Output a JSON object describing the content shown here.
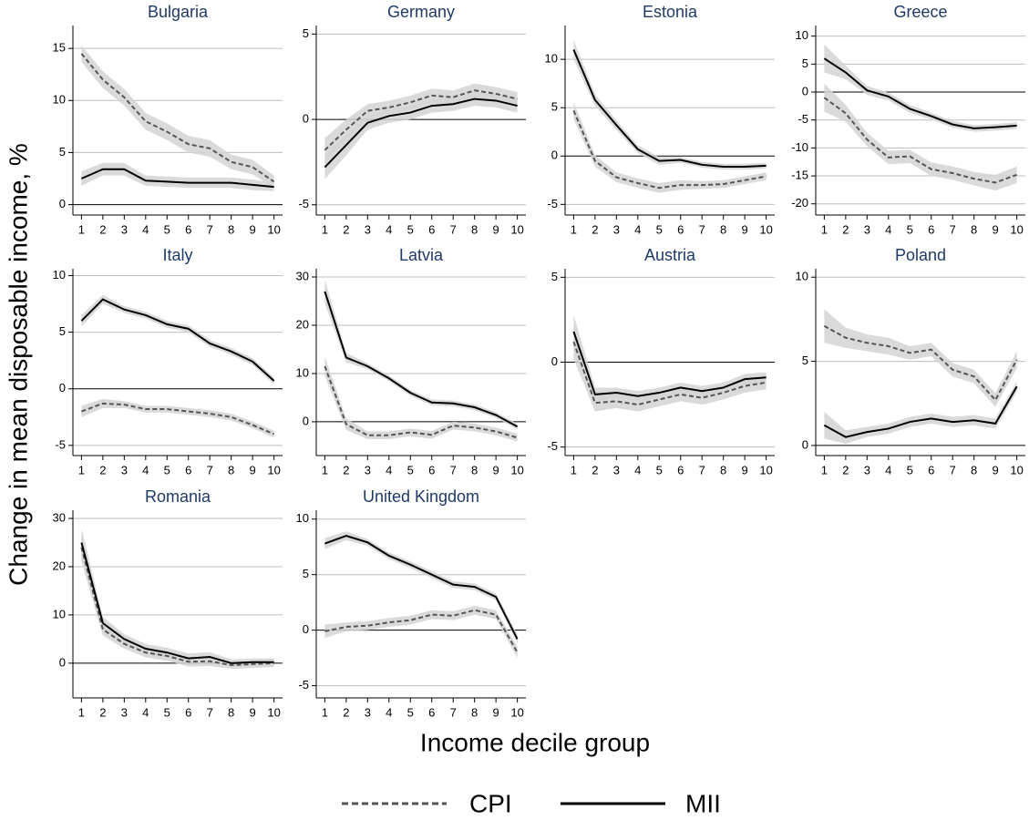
{
  "y_label": "Change in mean disposable income, %",
  "x_label": "Income decile group",
  "chart_data": [
    {
      "type": "line",
      "title": "Bulgaria",
      "x": [
        1,
        2,
        3,
        4,
        5,
        6,
        7,
        8,
        9,
        10
      ],
      "xlim": [
        0.6,
        10.4
      ],
      "xticks": [
        1,
        2,
        3,
        4,
        5,
        6,
        7,
        8,
        9,
        10
      ],
      "ylim": [
        -1,
        17.2
      ],
      "yticks": [
        0,
        5,
        10,
        15
      ],
      "series": [
        {
          "name": "CPI",
          "color": "#555555",
          "line_style": "dashed",
          "values": [
            14.5,
            12,
            10.3,
            8,
            7,
            5.8,
            5.4,
            4.1,
            3.6,
            2.2
          ],
          "ci": [
            0.8,
            0.8,
            0.8,
            0.8,
            0.8,
            0.8,
            0.8,
            0.7,
            0.7,
            0.6
          ]
        },
        {
          "name": "MII",
          "color": "#000000",
          "line_style": "solid",
          "values": [
            2.5,
            3.4,
            3.4,
            2.3,
            2.2,
            2.1,
            2.1,
            2.1,
            1.9,
            1.7
          ],
          "ci": [
            0.7,
            0.6,
            0.6,
            0.5,
            0.5,
            0.5,
            0.5,
            0.5,
            0.5,
            0.4
          ]
        }
      ]
    },
    {
      "type": "line",
      "title": "Germany",
      "x": [
        1,
        2,
        3,
        4,
        5,
        6,
        7,
        8,
        9,
        10
      ],
      "xlim": [
        0.6,
        10.4
      ],
      "xticks": [
        1,
        2,
        3,
        4,
        5,
        6,
        7,
        8,
        9,
        10
      ],
      "ylim": [
        -5.6,
        5.5
      ],
      "yticks": [
        -5,
        0,
        5
      ],
      "series": [
        {
          "name": "CPI",
          "color": "#555555",
          "line_style": "dashed",
          "values": [
            -1.8,
            -0.6,
            0.5,
            0.7,
            1.0,
            1.4,
            1.3,
            1.7,
            1.5,
            1.2
          ],
          "ci": [
            0.7,
            0.6,
            0.4,
            0.4,
            0.4,
            0.4,
            0.4,
            0.4,
            0.4,
            0.4
          ]
        },
        {
          "name": "MII",
          "color": "#000000",
          "line_style": "solid",
          "values": [
            -2.8,
            -1.5,
            -0.2,
            0.2,
            0.4,
            0.8,
            0.9,
            1.2,
            1.1,
            0.8
          ],
          "ci": [
            0.7,
            0.6,
            0.4,
            0.4,
            0.4,
            0.4,
            0.4,
            0.4,
            0.4,
            0.4
          ]
        }
      ]
    },
    {
      "type": "line",
      "title": "Estonia",
      "x": [
        1,
        2,
        3,
        4,
        5,
        6,
        7,
        8,
        9,
        10
      ],
      "xlim": [
        0.6,
        10.4
      ],
      "xticks": [
        1,
        2,
        3,
        4,
        5,
        6,
        7,
        8,
        9,
        10
      ],
      "ylim": [
        -6.1,
        13.5
      ],
      "yticks": [
        -5,
        0,
        5,
        10
      ],
      "series": [
        {
          "name": "CPI",
          "color": "#555555",
          "line_style": "dashed",
          "values": [
            4.7,
            -0.5,
            -2.2,
            -2.8,
            -3.3,
            -3,
            -3,
            -2.9,
            -2.5,
            -2.1
          ],
          "ci": [
            0.9,
            0.6,
            0.5,
            0.5,
            0.5,
            0.5,
            0.4,
            0.4,
            0.4,
            0.4
          ]
        },
        {
          "name": "MII",
          "color": "#000000",
          "line_style": "solid",
          "values": [
            11,
            5.8,
            3.2,
            0.7,
            -0.5,
            -0.4,
            -0.9,
            -1.1,
            -1.1,
            -1.0
          ],
          "ci": [
            1.0,
            0.6,
            0.5,
            0.4,
            0.4,
            0.3,
            0.3,
            0.3,
            0.3,
            0.3
          ]
        }
      ]
    },
    {
      "type": "line",
      "title": "Greece",
      "x": [
        1,
        2,
        3,
        4,
        5,
        6,
        7,
        8,
        9,
        10
      ],
      "xlim": [
        0.6,
        10.4
      ],
      "xticks": [
        1,
        2,
        3,
        4,
        5,
        6,
        7,
        8,
        9,
        10
      ],
      "ylim": [
        -22,
        11.9
      ],
      "yticks": [
        -20,
        -15,
        -10,
        -5,
        0,
        5,
        10
      ],
      "series": [
        {
          "name": "CPI",
          "color": "#555555",
          "line_style": "dashed",
          "values": [
            -1,
            -3.8,
            -8.5,
            -11.7,
            -11.5,
            -13.8,
            -14.5,
            -15.5,
            -16.2,
            -14.8
          ],
          "ci": [
            2.5,
            1.5,
            1.2,
            1.2,
            1.2,
            1.2,
            1.2,
            1.2,
            1.4,
            1.5
          ]
        },
        {
          "name": "MII",
          "color": "#000000",
          "line_style": "solid",
          "values": [
            6,
            3.5,
            0.3,
            -0.8,
            -3,
            -4.3,
            -5.8,
            -6.5,
            -6.3,
            -6
          ],
          "ci": [
            2.5,
            1.2,
            0.8,
            0.7,
            0.7,
            0.6,
            0.6,
            0.6,
            0.6,
            0.6
          ]
        }
      ]
    },
    {
      "type": "line",
      "title": "Italy",
      "x": [
        1,
        2,
        3,
        4,
        5,
        6,
        7,
        8,
        9,
        10
      ],
      "xlim": [
        0.6,
        10.4
      ],
      "xticks": [
        1,
        2,
        3,
        4,
        5,
        6,
        7,
        8,
        9,
        10
      ],
      "ylim": [
        -5.9,
        10.6
      ],
      "yticks": [
        -5,
        0,
        5,
        10
      ],
      "series": [
        {
          "name": "CPI",
          "color": "#555555",
          "line_style": "dashed",
          "values": [
            -2,
            -1.3,
            -1.4,
            -1.8,
            -1.8,
            -2,
            -2.2,
            -2.5,
            -3.2,
            -4
          ],
          "ci": [
            0.5,
            0.4,
            0.3,
            0.3,
            0.3,
            0.3,
            0.3,
            0.3,
            0.3,
            0.3
          ]
        },
        {
          "name": "MII",
          "color": "#000000",
          "line_style": "solid",
          "values": [
            6,
            7.9,
            7,
            6.5,
            5.7,
            5.3,
            4,
            3.3,
            2.4,
            0.7
          ],
          "ci": [
            0.5,
            0.4,
            0.3,
            0.3,
            0.3,
            0.3,
            0.3,
            0.3,
            0.3,
            0.3
          ]
        }
      ]
    },
    {
      "type": "line",
      "title": "Latvia",
      "x": [
        1,
        2,
        3,
        4,
        5,
        6,
        7,
        8,
        9,
        10
      ],
      "xlim": [
        0.6,
        10.4
      ],
      "xticks": [
        1,
        2,
        3,
        4,
        5,
        6,
        7,
        8,
        9,
        10
      ],
      "ylim": [
        -7,
        31.7
      ],
      "yticks": [
        0,
        10,
        20,
        30
      ],
      "series": [
        {
          "name": "CPI",
          "color": "#555555",
          "line_style": "dashed",
          "values": [
            11.5,
            -0.5,
            -2.8,
            -2.8,
            -2.2,
            -2.7,
            -0.8,
            -1.2,
            -2,
            -3.3
          ],
          "ci": [
            2.0,
            1.2,
            0.8,
            0.8,
            0.8,
            0.8,
            0.8,
            0.8,
            0.8,
            0.8
          ]
        },
        {
          "name": "MII",
          "color": "#000000",
          "line_style": "solid",
          "values": [
            27,
            13.3,
            11.5,
            9,
            6,
            4,
            3.8,
            3,
            1.4,
            -1
          ],
          "ci": [
            2.5,
            1.0,
            0.6,
            0.6,
            0.6,
            0.6,
            0.6,
            0.6,
            0.6,
            0.6
          ]
        }
      ]
    },
    {
      "type": "line",
      "title": "Austria",
      "x": [
        1,
        2,
        3,
        4,
        5,
        6,
        7,
        8,
        9,
        10
      ],
      "xlim": [
        0.6,
        10.4
      ],
      "xticks": [
        1,
        2,
        3,
        4,
        5,
        6,
        7,
        8,
        9,
        10
      ],
      "ylim": [
        -5.5,
        5.5
      ],
      "yticks": [
        -5,
        0,
        5
      ],
      "series": [
        {
          "name": "CPI",
          "color": "#555555",
          "line_style": "dashed",
          "values": [
            1.2,
            -2.4,
            -2.3,
            -2.5,
            -2.2,
            -1.9,
            -2.1,
            -1.8,
            -1.4,
            -1.2
          ],
          "ci": [
            1.0,
            0.5,
            0.4,
            0.4,
            0.4,
            0.4,
            0.4,
            0.4,
            0.4,
            0.4
          ]
        },
        {
          "name": "MII",
          "color": "#000000",
          "line_style": "solid",
          "values": [
            1.8,
            -1.9,
            -1.8,
            -2,
            -1.8,
            -1.5,
            -1.7,
            -1.5,
            -1.0,
            -0.9
          ],
          "ci": [
            1.0,
            0.4,
            0.3,
            0.3,
            0.3,
            0.3,
            0.3,
            0.3,
            0.3,
            0.3
          ]
        }
      ]
    },
    {
      "type": "line",
      "title": "Poland",
      "x": [
        1,
        2,
        3,
        4,
        5,
        6,
        7,
        8,
        9,
        10
      ],
      "xlim": [
        0.6,
        10.4
      ],
      "xticks": [
        1,
        2,
        3,
        4,
        5,
        6,
        7,
        8,
        9,
        10
      ],
      "ylim": [
        -0.6,
        10.5
      ],
      "yticks": [
        0,
        5,
        10
      ],
      "series": [
        {
          "name": "CPI",
          "color": "#555555",
          "line_style": "dashed",
          "values": [
            7.1,
            6.4,
            6.1,
            5.9,
            5.5,
            5.7,
            4.5,
            4.1,
            2.7,
            5.1
          ],
          "ci": [
            1.0,
            0.6,
            0.5,
            0.5,
            0.4,
            0.4,
            0.4,
            0.4,
            0.4,
            0.5
          ]
        },
        {
          "name": "MII",
          "color": "#000000",
          "line_style": "solid",
          "values": [
            1.2,
            0.5,
            0.8,
            1.0,
            1.4,
            1.6,
            1.4,
            1.5,
            1.3,
            3.5
          ],
          "ci": [
            0.8,
            0.4,
            0.3,
            0.3,
            0.3,
            0.3,
            0.3,
            0.3,
            0.3,
            0.3
          ]
        }
      ]
    },
    {
      "type": "line",
      "title": "Romania",
      "x": [
        1,
        2,
        3,
        4,
        5,
        6,
        7,
        8,
        9,
        10
      ],
      "xlim": [
        0.6,
        10.4
      ],
      "xticks": [
        1,
        2,
        3,
        4,
        5,
        6,
        7,
        8,
        9,
        10
      ],
      "ylim": [
        -7.2,
        31.7
      ],
      "yticks": [
        0,
        10,
        20,
        30
      ],
      "series": [
        {
          "name": "CPI",
          "color": "#555555",
          "line_style": "dashed",
          "values": [
            24,
            7,
            4,
            2.2,
            1.5,
            0.3,
            0.4,
            -0.4,
            -0.2,
            0
          ],
          "ci": [
            3.0,
            1.3,
            1.0,
            1.0,
            1.0,
            1.0,
            1.0,
            0.8,
            0.8,
            0.8
          ]
        },
        {
          "name": "MII",
          "color": "#000000",
          "line_style": "solid",
          "values": [
            25,
            8.3,
            5,
            3,
            2.2,
            1,
            1.3,
            0,
            0.2,
            0.2
          ],
          "ci": [
            3.0,
            1.3,
            1.0,
            1.0,
            1.0,
            1.0,
            1.0,
            0.8,
            0.8,
            0.8
          ]
        }
      ]
    },
    {
      "type": "line",
      "title": "United Kingdom",
      "x": [
        1,
        2,
        3,
        4,
        5,
        6,
        7,
        8,
        9,
        10
      ],
      "xlim": [
        0.6,
        10.4
      ],
      "xticks": [
        1,
        2,
        3,
        4,
        5,
        6,
        7,
        8,
        9,
        10
      ],
      "ylim": [
        -6.1,
        10.8
      ],
      "yticks": [
        -5,
        0,
        5,
        10
      ],
      "series": [
        {
          "name": "CPI",
          "color": "#555555",
          "line_style": "dashed",
          "values": [
            -0.1,
            0.3,
            0.4,
            0.7,
            0.9,
            1.4,
            1.3,
            1.8,
            1.4,
            -2
          ],
          "ci": [
            0.6,
            0.4,
            0.4,
            0.4,
            0.4,
            0.4,
            0.4,
            0.4,
            0.4,
            0.5
          ]
        },
        {
          "name": "MII",
          "color": "#000000",
          "line_style": "solid",
          "values": [
            7.8,
            8.5,
            7.9,
            6.7,
            5.9,
            5.0,
            4.1,
            3.9,
            3.0,
            -0.8
          ],
          "ci": [
            0.5,
            0.4,
            0.3,
            0.3,
            0.3,
            0.3,
            0.3,
            0.3,
            0.3,
            0.4
          ]
        }
      ]
    }
  ]
}
